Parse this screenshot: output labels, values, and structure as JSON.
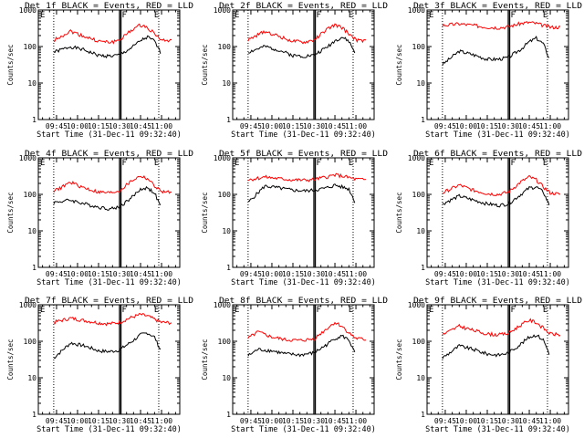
{
  "figure": {
    "ylabel": "Counts/sec",
    "xlabel": "Start Time (31-Dec-11 09:32:40)",
    "x_tick_labels": [
      "09:45",
      "10:00",
      "10:15",
      "10:30",
      "10:45",
      "11:00"
    ],
    "y_tick_labels": [
      "1",
      "10",
      "100",
      "1000"
    ],
    "marker_labels": [
      "E",
      "F",
      "E"
    ],
    "colors": {
      "events": "#000000",
      "lld": "#ff0000",
      "axes": "#000000"
    }
  },
  "chart_data": [
    {
      "type": "line",
      "title": "Det 1f BLACK = Events, RED = LLD",
      "xlabel": "Start Time (31-Dec-11 09:32:40)",
      "ylabel": "Counts/sec",
      "yscale": "log",
      "ylim": [
        1,
        1000
      ],
      "xlim": [
        "09:32",
        "11:13"
      ],
      "x": [
        "09:43",
        "09:55",
        "10:05",
        "10:15",
        "10:23",
        "10:30",
        "10:39",
        "10:45",
        "10:50",
        "10:55",
        "11:00",
        "11:08"
      ],
      "series": [
        {
          "name": "Events",
          "color": "#000000",
          "values": [
            70,
            100,
            80,
            57,
            55,
            58,
            95,
            145,
            180,
            140,
            60,
            null
          ]
        },
        {
          "name": "LLD",
          "color": "#ff0000",
          "values": [
            150,
            265,
            190,
            140,
            130,
            150,
            290,
            390,
            330,
            230,
            150,
            140
          ]
        }
      ]
    },
    {
      "type": "line",
      "title": "Det 2f BLACK = Events, RED = LLD",
      "xlabel": "Start Time (31-Dec-11 09:32:40)",
      "ylabel": "Counts/sec",
      "yscale": "log",
      "ylim": [
        1,
        1000
      ],
      "xlim": [
        "09:32",
        "11:13"
      ],
      "x": [
        "09:43",
        "09:55",
        "10:05",
        "10:15",
        "10:23",
        "10:30",
        "10:39",
        "10:45",
        "10:50",
        "10:55",
        "11:00",
        "11:08"
      ],
      "series": [
        {
          "name": "Events",
          "color": "#000000",
          "values": [
            70,
            100,
            80,
            57,
            55,
            58,
            95,
            145,
            180,
            140,
            60,
            null
          ]
        },
        {
          "name": "LLD",
          "color": "#ff0000",
          "values": [
            150,
            265,
            190,
            140,
            130,
            150,
            290,
            390,
            330,
            230,
            150,
            140
          ]
        }
      ]
    },
    {
      "type": "line",
      "title": "Det 3f BLACK = Events, RED = LLD",
      "xlabel": "Start Time (31-Dec-11 09:32:40)",
      "ylabel": "Counts/sec",
      "yscale": "log",
      "ylim": [
        1,
        1000
      ],
      "xlim": [
        "09:32",
        "11:13"
      ],
      "x": [
        "09:43",
        "09:55",
        "10:05",
        "10:15",
        "10:23",
        "10:30",
        "10:39",
        "10:45",
        "10:50",
        "10:55",
        "11:00",
        "11:08"
      ],
      "series": [
        {
          "name": "Events",
          "color": "#000000",
          "values": [
            32,
            75,
            60,
            45,
            45,
            50,
            85,
            135,
            170,
            120,
            40,
            null
          ]
        },
        {
          "name": "LLD",
          "color": "#ff0000",
          "values": [
            380,
            420,
            380,
            340,
            330,
            350,
            430,
            460,
            430,
            380,
            340,
            340
          ]
        }
      ]
    },
    {
      "type": "line",
      "title": "Det 4f BLACK = Events, RED = LLD",
      "xlabel": "Start Time (31-Dec-11 09:32:40)",
      "ylabel": "Counts/sec",
      "yscale": "log",
      "ylim": [
        1,
        1000
      ],
      "xlim": [
        "09:32",
        "11:13"
      ],
      "x": [
        "09:43",
        "09:55",
        "10:05",
        "10:15",
        "10:23",
        "10:30",
        "10:39",
        "10:45",
        "10:50",
        "10:55",
        "11:00",
        "11:08"
      ],
      "series": [
        {
          "name": "Events",
          "color": "#000000",
          "values": [
            60,
            70,
            55,
            45,
            40,
            45,
            85,
            140,
            150,
            110,
            40,
            null
          ]
        },
        {
          "name": "LLD",
          "color": "#ff0000",
          "values": [
            120,
            215,
            150,
            115,
            110,
            125,
            240,
            320,
            270,
            170,
            120,
            110
          ]
        }
      ]
    },
    {
      "type": "line",
      "title": "Det 5f BLACK = Events, RED = LLD",
      "xlabel": "Start Time (31-Dec-11 09:32:40)",
      "ylabel": "Counts/sec",
      "yscale": "log",
      "ylim": [
        1,
        1000
      ],
      "xlim": [
        "09:32",
        "11:13"
      ],
      "x": [
        "09:43",
        "09:55",
        "10:05",
        "10:15",
        "10:23",
        "10:30",
        "10:39",
        "10:45",
        "10:50",
        "10:55",
        "11:00",
        "11:08"
      ],
      "series": [
        {
          "name": "Events",
          "color": "#000000",
          "values": [
            60,
            170,
            150,
            130,
            125,
            130,
            150,
            180,
            160,
            140,
            55,
            null
          ]
        },
        {
          "name": "LLD",
          "color": "#ff0000",
          "values": [
            250,
            300,
            270,
            250,
            245,
            255,
            300,
            340,
            320,
            290,
            260,
            250
          ]
        }
      ]
    },
    {
      "type": "line",
      "title": "Det 6f BLACK = Events, RED = LLD",
      "xlabel": "Start Time (31-Dec-11 09:32:40)",
      "ylabel": "Counts/sec",
      "yscale": "log",
      "ylim": [
        1,
        1000
      ],
      "xlim": [
        "09:32",
        "11:13"
      ],
      "x": [
        "09:43",
        "09:55",
        "10:05",
        "10:15",
        "10:23",
        "10:30",
        "10:39",
        "10:45",
        "10:50",
        "10:55",
        "11:00",
        "11:08"
      ],
      "series": [
        {
          "name": "Events",
          "color": "#000000",
          "values": [
            55,
            90,
            70,
            55,
            50,
            55,
            100,
            150,
            160,
            115,
            45,
            null
          ]
        },
        {
          "name": "LLD",
          "color": "#ff0000",
          "values": [
            110,
            180,
            130,
            105,
            100,
            115,
            220,
            300,
            250,
            160,
            110,
            100
          ]
        }
      ]
    },
    {
      "type": "line",
      "title": "Det 7f BLACK = Events, RED = LLD",
      "xlabel": "Start Time (31-Dec-11 09:32:40)",
      "ylabel": "Counts/sec",
      "yscale": "log",
      "ylim": [
        1,
        1000
      ],
      "xlim": [
        "09:32",
        "11:13"
      ],
      "x": [
        "09:43",
        "09:55",
        "10:05",
        "10:15",
        "10:23",
        "10:30",
        "10:39",
        "10:45",
        "10:50",
        "10:55",
        "11:00",
        "11:08"
      ],
      "series": [
        {
          "name": "Events",
          "color": "#000000",
          "values": [
            35,
            90,
            75,
            55,
            52,
            58,
            100,
            150,
            170,
            130,
            50,
            null
          ]
        },
        {
          "name": "LLD",
          "color": "#ff0000",
          "values": [
            330,
            430,
            370,
            320,
            300,
            330,
            460,
            540,
            490,
            400,
            330,
            320
          ]
        }
      ]
    },
    {
      "type": "line",
      "title": "Det 8f BLACK = Events, RED = LLD",
      "xlabel": "Start Time (31-Dec-11 09:32:40)",
      "ylabel": "Counts/sec",
      "yscale": "log",
      "ylim": [
        1,
        1000
      ],
      "xlim": [
        "09:32",
        "11:13"
      ],
      "x": [
        "09:43",
        "09:50",
        "10:00",
        "10:10",
        "10:20",
        "10:30",
        "10:39",
        "10:45",
        "10:50",
        "10:55",
        "11:00",
        "11:08"
      ],
      "series": [
        {
          "name": "Events",
          "color": "#000000",
          "values": [
            40,
            60,
            55,
            45,
            42,
            48,
            80,
            120,
            140,
            110,
            40,
            null
          ]
        },
        {
          "name": "LLD",
          "color": "#ff0000",
          "values": [
            120,
            180,
            130,
            110,
            105,
            115,
            220,
            330,
            260,
            170,
            120,
            110
          ]
        }
      ]
    },
    {
      "type": "line",
      "title": "Det 9f BLACK = Events, RED = LLD",
      "xlabel": "Start Time (31-Dec-11 09:32:40)",
      "ylabel": "Counts/sec",
      "yscale": "log",
      "ylim": [
        1,
        1000
      ],
      "xlim": [
        "09:32",
        "11:13"
      ],
      "x": [
        "09:43",
        "09:55",
        "10:05",
        "10:15",
        "10:23",
        "10:30",
        "10:39",
        "10:45",
        "10:50",
        "10:55",
        "11:00",
        "11:08"
      ],
      "series": [
        {
          "name": "Events",
          "color": "#000000",
          "values": [
            35,
            75,
            60,
            45,
            42,
            48,
            85,
            130,
            150,
            110,
            40,
            null
          ]
        },
        {
          "name": "LLD",
          "color": "#ff0000",
          "values": [
            150,
            260,
            200,
            160,
            150,
            165,
            280,
            380,
            330,
            230,
            160,
            150
          ]
        }
      ]
    }
  ]
}
